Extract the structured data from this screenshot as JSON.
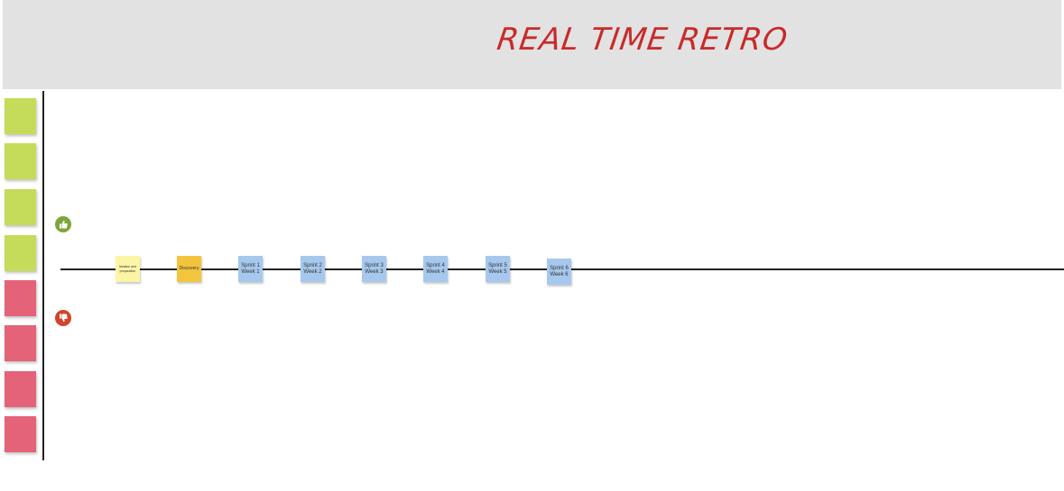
{
  "board": {
    "title": "REAL TIME RETRO",
    "colors": {
      "header_bg": "#e2e2e2",
      "title": "#c92a2a",
      "sticky_green": "#c4dc5a",
      "sticky_red": "#e46378",
      "phase_blue": "#a6c8ee",
      "phase_yellow": "#f2c53d",
      "phase_light_yellow": "#fdf5a6"
    },
    "icons": {
      "positive": "thumbs-up-icon",
      "negative": "thumbs-down-icon"
    },
    "phases": [
      {
        "line1": "Ideation and",
        "line2": "preparation"
      },
      {
        "line1": "Discovery",
        "line2": ""
      },
      {
        "line1": "Sprint 1",
        "line2": "Week 1"
      },
      {
        "line1": "Sprint 2",
        "line2": "Week 2"
      },
      {
        "line1": "Sprint 3",
        "line2": "Week 3"
      },
      {
        "line1": "Sprint 4",
        "line2": "Week 4"
      },
      {
        "line1": "Sprint 5",
        "line2": "Week 5"
      },
      {
        "line1": "Sprint 6",
        "line2": "Week 6"
      }
    ]
  }
}
